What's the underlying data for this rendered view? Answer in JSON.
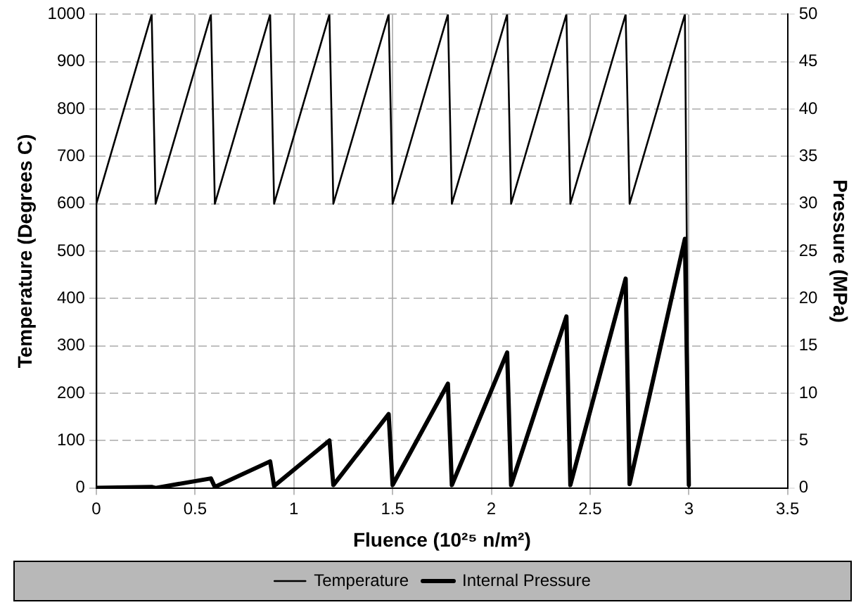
{
  "chart_data": {
    "type": "line",
    "xlabel": "Fluence (10²⁵ n/m²)",
    "ylabel": "Temperature (Degrees C)",
    "y2label": "Pressure (MPa)",
    "xlim": [
      0,
      3.5
    ],
    "xticks": [
      0,
      0.5,
      1,
      1.5,
      2,
      2.5,
      3,
      3.5
    ],
    "ylim": [
      0,
      1000
    ],
    "yticks": [
      0,
      100,
      200,
      300,
      400,
      500,
      600,
      700,
      800,
      900,
      1000
    ],
    "y2lim": [
      0,
      50
    ],
    "y2ticks": [
      0,
      5,
      10,
      15,
      20,
      25,
      30,
      35,
      40,
      45,
      50
    ],
    "grid": true,
    "legend": "bottom",
    "marker": "none",
    "series": [
      {
        "name": "Temperature",
        "color": "#000000",
        "x": [
          0,
          0,
          0.28,
          0.3,
          0.58,
          0.6,
          0.88,
          0.9,
          1.18,
          1.2,
          1.48,
          1.5,
          1.78,
          1.8,
          2.08,
          2.1,
          2.38,
          2.4,
          2.68,
          2.7,
          2.98,
          3.0
        ],
        "values": [
          0,
          600,
          1000,
          600,
          1000,
          600,
          1000,
          600,
          1000,
          600,
          1000,
          600,
          1000,
          600,
          1000,
          600,
          1000,
          600,
          1000,
          600,
          1000,
          0
        ]
      },
      {
        "name": "Internal Pressure",
        "color": "#000000",
        "axis": "y2",
        "x": [
          0,
          0.28,
          0.3,
          0.58,
          0.6,
          0.88,
          0.9,
          1.18,
          1.2,
          1.48,
          1.5,
          1.78,
          1.8,
          2.08,
          2.1,
          2.38,
          2.4,
          2.68,
          2.7,
          2.98,
          3.0
        ],
        "values": [
          0,
          0.1,
          0,
          1,
          0.1,
          2.8,
          0.2,
          5,
          0.3,
          7.8,
          0.3,
          11,
          0.3,
          14.3,
          0.3,
          18.1,
          0.3,
          22.1,
          0.4,
          26.3,
          0.3
        ]
      }
    ]
  }
}
